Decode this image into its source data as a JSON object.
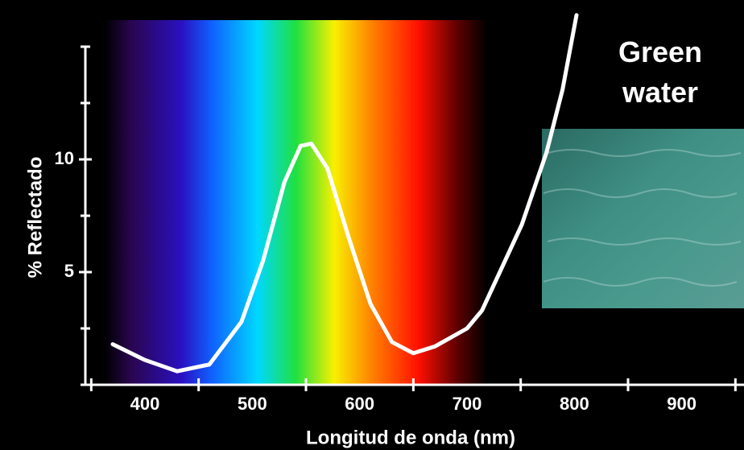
{
  "chart_data": {
    "type": "line",
    "ylabel": "% Reflectado",
    "xlabel": "Longitud de onda (nm)",
    "annotation": "Green\nwater",
    "x": [
      370,
      400,
      430,
      460,
      490,
      510,
      530,
      545,
      555,
      570,
      590,
      610,
      630,
      650,
      670,
      700,
      714,
      751,
      774,
      789,
      802
    ],
    "series": [
      {
        "color": "#ffffff",
        "values": [
          1.8,
          1.1,
          0.6,
          0.9,
          2.8,
          5.5,
          9.0,
          10.6,
          10.7,
          9.6,
          6.5,
          3.6,
          1.9,
          1.4,
          1.7,
          2.5,
          3.3,
          7.1,
          10.3,
          13.1,
          16.4
        ]
      }
    ],
    "xlim": [
      340,
      955
    ],
    "ylim": [
      0,
      17
    ],
    "xticks": [
      400,
      500,
      600,
      700,
      800,
      900
    ],
    "xminor": [
      350,
      450,
      550,
      650,
      750,
      850,
      950
    ],
    "yticks": [
      5,
      10
    ],
    "yminor": [
      2.5,
      7.5,
      12.5,
      15
    ]
  }
}
